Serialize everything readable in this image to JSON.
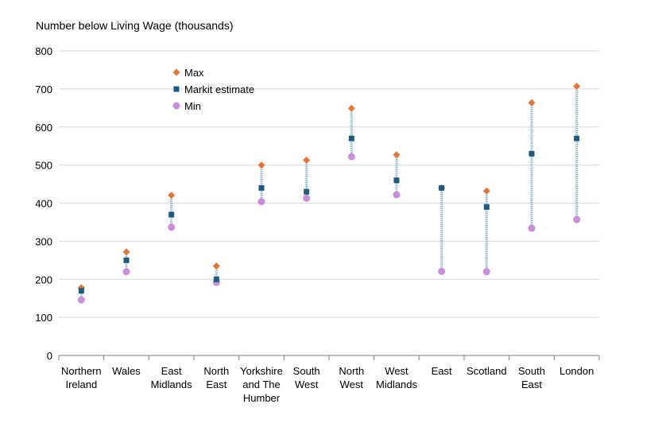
{
  "chart_data": {
    "type": "scatter",
    "ylabel": "Number below Living Wage (thousands)",
    "ylim": [
      0,
      800
    ],
    "yticks": [
      0,
      100,
      200,
      300,
      400,
      500,
      600,
      700,
      800
    ],
    "grid": true,
    "legend_position": "top-left",
    "categories": [
      [
        "Northern",
        "Ireland"
      ],
      [
        "Wales"
      ],
      [
        "East",
        "Midlands"
      ],
      [
        "North",
        "East"
      ],
      [
        "Yorkshire",
        "and The",
        "Humber"
      ],
      [
        "South",
        "West"
      ],
      [
        "North",
        "West"
      ],
      [
        "West",
        "Midlands"
      ],
      [
        "East"
      ],
      [
        "Scotland"
      ],
      [
        "South",
        "East"
      ],
      [
        "London"
      ]
    ],
    "series": [
      {
        "name": "Max",
        "marker": "diamond",
        "color": "#e0763a",
        "values": [
          178,
          272,
          421,
          235,
          500,
          513,
          649,
          527,
          440,
          432,
          664,
          707
        ]
      },
      {
        "name": "Markit estimate",
        "marker": "square",
        "color": "#1f5a7c",
        "values": [
          170,
          250,
          370,
          200,
          440,
          430,
          570,
          460,
          440,
          390,
          530,
          570
        ]
      },
      {
        "name": "Min",
        "marker": "circle",
        "color": "#c98fd8",
        "values": [
          146,
          220,
          337,
          192,
          404,
          413,
          522,
          422,
          221,
          220,
          334,
          357
        ]
      }
    ],
    "range_line_color": "#8fb8c8"
  }
}
